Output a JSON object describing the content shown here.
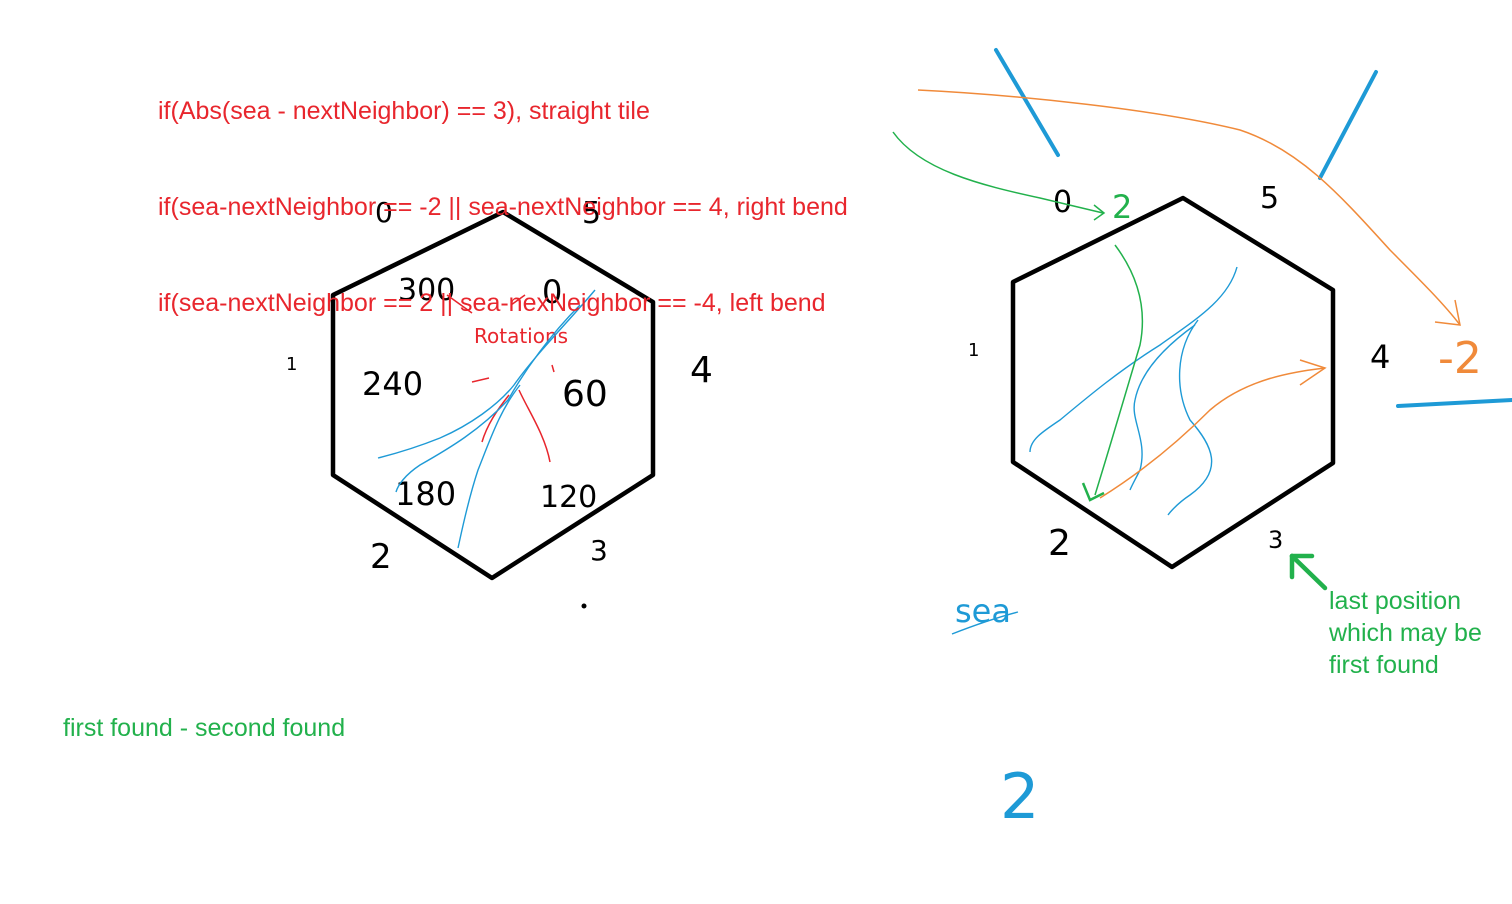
{
  "rules": [
    "if(Abs(sea - nextNeighbor) == 3), straight tile",
    "if(sea-nextNeighbor == -2 || sea-nextNeighbor == 4, right bend",
    "if(sea-nextNeighbor == 2 || sea-nexNeighbor == -4, left bend"
  ],
  "notes": {
    "first_found": "first found - second found",
    "last_position": [
      "last position",
      "which may be",
      "first found"
    ]
  },
  "left_hex": {
    "edge_labels": [
      "0",
      "1",
      "2",
      "3",
      "4",
      "5"
    ],
    "rotation_title": "Rotations",
    "rotations": [
      "300",
      "0",
      "60",
      "120",
      "180",
      "240"
    ]
  },
  "right_hex": {
    "edge_labels": [
      "0",
      "1",
      "2",
      "3",
      "4",
      "5"
    ],
    "sea_label": "sea",
    "marks": {
      "top": "2",
      "right": "-2",
      "bottom": "2"
    }
  },
  "colors": {
    "red": "#e8262d",
    "green": "#22b14c",
    "blue": "#1e9ad6",
    "orange": "#f08a3a",
    "black": "#000000"
  }
}
